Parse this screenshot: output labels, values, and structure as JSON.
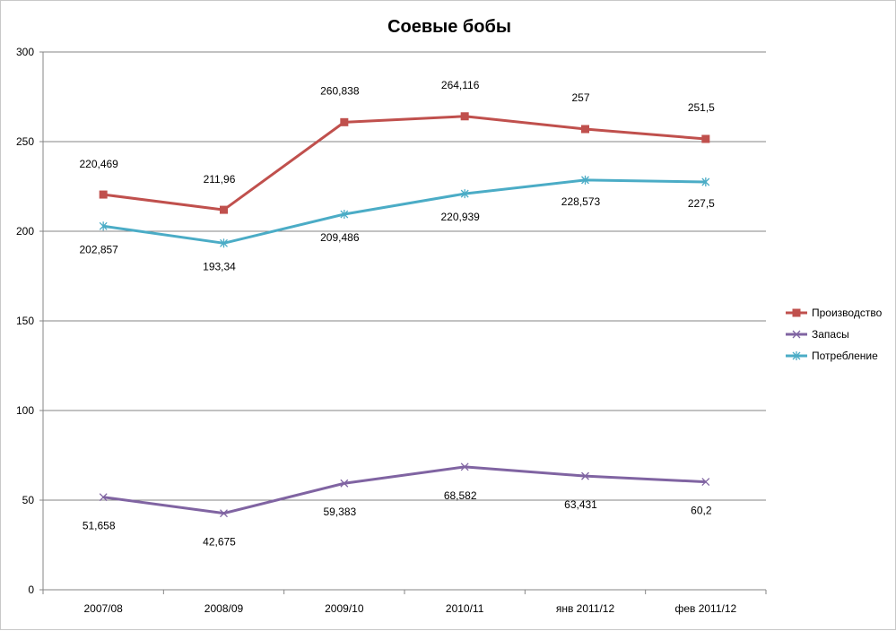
{
  "chart_data": {
    "type": "line",
    "title": "Соевые бобы",
    "xlabel": "",
    "ylabel": "",
    "categories": [
      "2007/08",
      "2008/09",
      "2009/10",
      "2010/11",
      "янв 2011/12",
      "фев 2011/12"
    ],
    "ylim": [
      0,
      300
    ],
    "yticks": [
      "0",
      "50",
      "100",
      "150",
      "200",
      "250",
      "300"
    ],
    "grid": true,
    "legend_position": "right",
    "series": [
      {
        "name": "Производство",
        "color": "#c0504d",
        "marker": "square",
        "values": [
          220.469,
          211.96,
          260.838,
          264.116,
          257,
          251.5
        ],
        "labels": [
          "220,469",
          "211,96",
          "260,838",
          "264,116",
          "257",
          "251,5"
        ],
        "label_position": "above"
      },
      {
        "name": "Запасы",
        "color": "#8064a2",
        "marker": "x",
        "values": [
          51.658,
          42.675,
          59.383,
          68.582,
          63.431,
          60.2
        ],
        "labels": [
          "51,658",
          "42,675",
          "59,383",
          "68,582",
          "63,431",
          "60,2"
        ],
        "label_position": "below"
      },
      {
        "name": "Потребление",
        "color": "#4bacc6",
        "marker": "star",
        "values": [
          202.857,
          193.34,
          209.486,
          220.939,
          228.573,
          227.5
        ],
        "labels": [
          "202,857",
          "193,34",
          "209,486",
          "220,939",
          "228,573",
          "227,5"
        ],
        "label_position": "below"
      }
    ]
  }
}
